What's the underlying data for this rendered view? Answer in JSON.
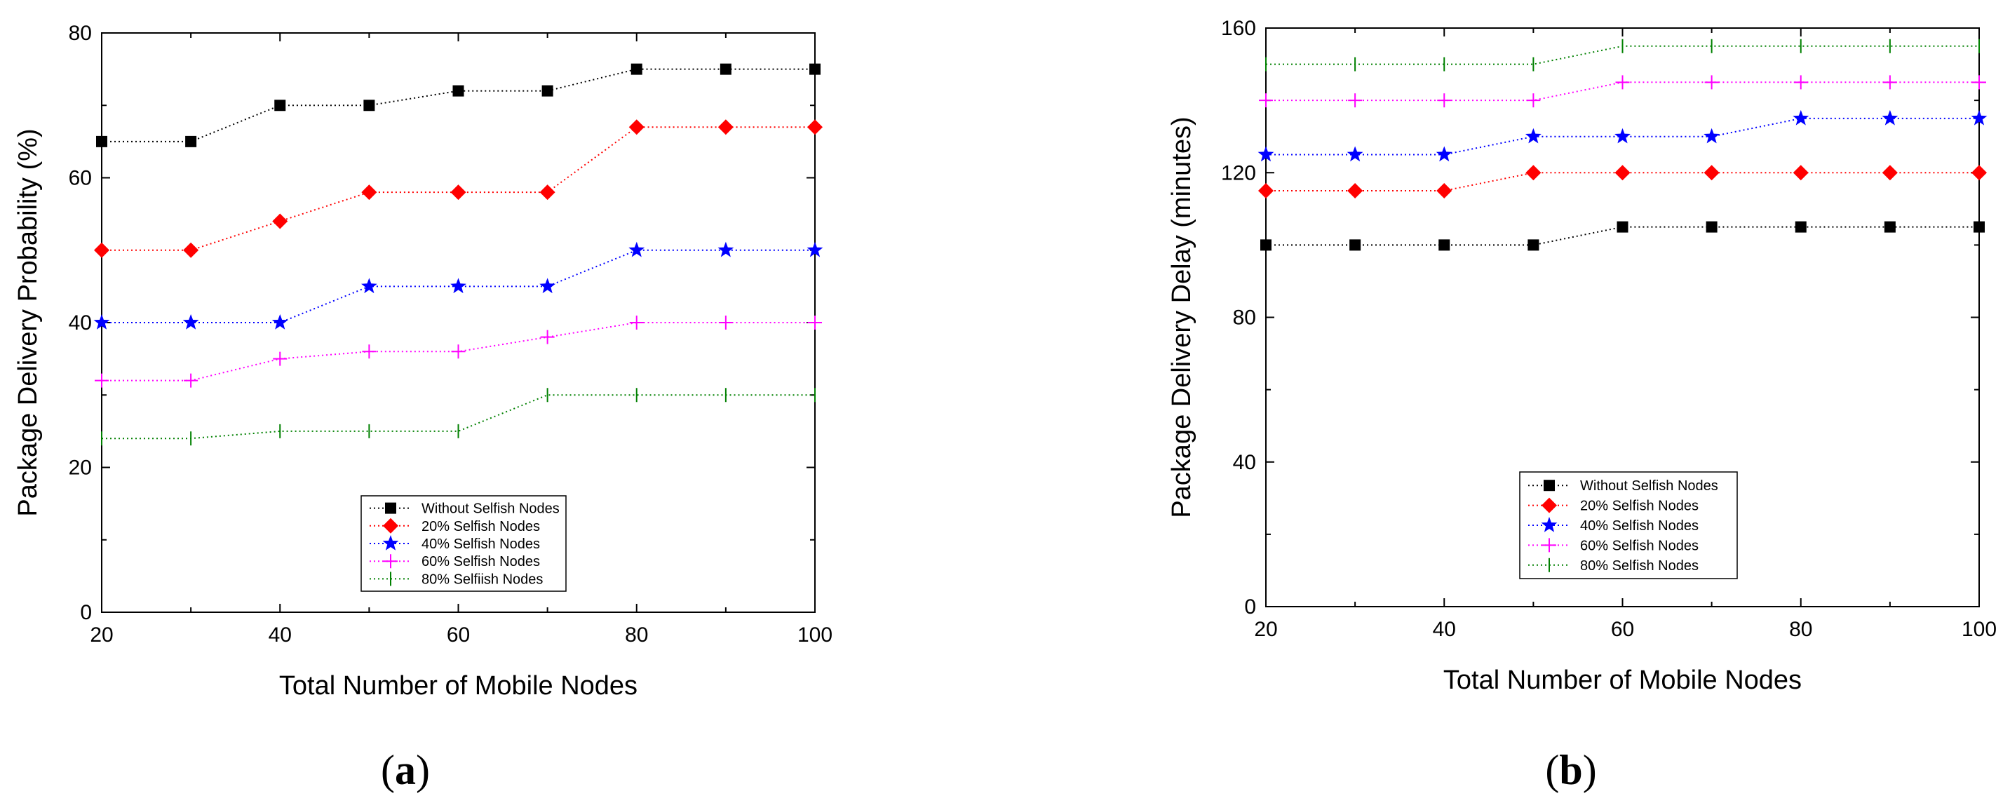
{
  "chart_data": [
    {
      "type": "line",
      "title": "",
      "caption": {
        "open": "(",
        "letter": "a",
        "close": ")"
      },
      "xlabel": "Total Number of Mobile Nodes",
      "ylabel": "Package Delivery Probability (%)",
      "xlim": [
        20,
        100
      ],
      "ylim": [
        0,
        80
      ],
      "xticks": [
        "20",
        "40",
        "60",
        "80",
        "100"
      ],
      "yticks": [
        "0",
        "20",
        "40",
        "60",
        "80"
      ],
      "x": [
        20,
        30,
        40,
        50,
        60,
        70,
        80,
        90,
        100
      ],
      "legend_position": "bottom-center",
      "series": [
        {
          "name": "Without Selfish Nodes",
          "color": "#000000",
          "marker": "square",
          "values": [
            65,
            65,
            70,
            70,
            72,
            72,
            75,
            75,
            75
          ]
        },
        {
          "name": "20% Selfish Nodes",
          "color": "#ff0000",
          "marker": "diamond",
          "values": [
            50,
            50,
            54,
            58,
            58,
            58,
            67,
            67,
            67
          ]
        },
        {
          "name": "40% Selfish Nodes",
          "color": "#0000ff",
          "marker": "star",
          "values": [
            40,
            40,
            40,
            45,
            45,
            45,
            50,
            50,
            50
          ]
        },
        {
          "name": "60% Selfish Nodes",
          "color": "#ff00ff",
          "marker": "plus",
          "values": [
            32,
            32,
            35,
            36,
            36,
            38,
            40,
            40,
            40
          ]
        },
        {
          "name": "80% Selfiish Nodes",
          "color": "#008000",
          "marker": "vline",
          "values": [
            24,
            24,
            25,
            25,
            25,
            30,
            30,
            30,
            30
          ]
        }
      ]
    },
    {
      "type": "line",
      "title": "",
      "caption": {
        "open": "(",
        "letter": "b",
        "close": ")"
      },
      "xlabel": "Total Number of Mobile Nodes",
      "ylabel": "Package Delivery Delay (minutes)",
      "xlim": [
        20,
        100
      ],
      "ylim": [
        0,
        160
      ],
      "xticks": [
        "20",
        "40",
        "60",
        "80",
        "100"
      ],
      "yticks": [
        "0",
        "40",
        "80",
        "120",
        "160"
      ],
      "x": [
        20,
        30,
        40,
        50,
        60,
        70,
        80,
        90,
        100
      ],
      "legend_position": "bottom-center",
      "series": [
        {
          "name": "Without Selfish Nodes",
          "color": "#000000",
          "marker": "square",
          "values": [
            100,
            100,
            100,
            100,
            105,
            105,
            105,
            105,
            105
          ]
        },
        {
          "name": "20% Selfish Nodes",
          "color": "#ff0000",
          "marker": "diamond",
          "values": [
            115,
            115,
            115,
            120,
            120,
            120,
            120,
            120,
            120
          ]
        },
        {
          "name": "40% Selfish Nodes",
          "color": "#0000ff",
          "marker": "star",
          "values": [
            125,
            125,
            125,
            130,
            130,
            130,
            135,
            135,
            135
          ]
        },
        {
          "name": "60% Selfish Nodes",
          "color": "#ff00ff",
          "marker": "plus",
          "values": [
            140,
            140,
            140,
            140,
            145,
            145,
            145,
            145,
            145
          ]
        },
        {
          "name": "80% Selfish Nodes",
          "color": "#008000",
          "marker": "vline",
          "values": [
            150,
            150,
            150,
            150,
            155,
            155,
            155,
            155,
            155
          ]
        }
      ]
    }
  ]
}
